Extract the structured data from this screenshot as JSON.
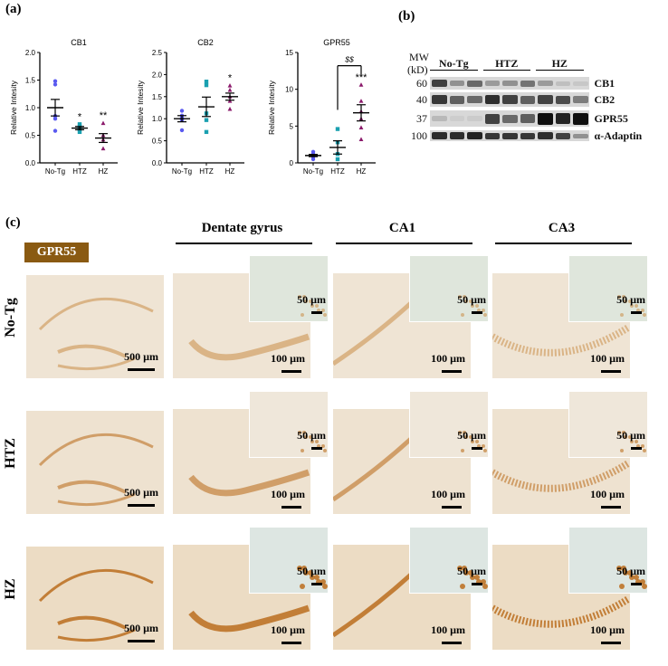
{
  "panels": {
    "a": {
      "label": "(a)"
    },
    "b": {
      "label": "(b)"
    },
    "c": {
      "label": "(c)"
    }
  },
  "chart_data": [
    {
      "type": "scatter",
      "title": "CB1",
      "xlabel": "",
      "ylabel": "Relative Intesity",
      "categories": [
        "No-Tg",
        "HTZ",
        "HZ"
      ],
      "ylim": [
        0,
        2.0
      ],
      "yticks": [
        "0.0",
        "0.5",
        "1.0",
        "1.5",
        "2.0"
      ],
      "series": [
        {
          "name": "No-Tg",
          "color": "#5a5af0",
          "marker": "circle",
          "values": [
            1.48,
            1.42,
            0.85,
            0.8,
            0.58
          ],
          "mean": 1.0,
          "sem": 0.15
        },
        {
          "name": "HTZ",
          "color": "#1aa0b0",
          "marker": "square",
          "values": [
            0.7,
            0.66,
            0.63,
            0.6,
            0.56
          ],
          "mean": 0.63,
          "sem": 0.03
        },
        {
          "name": "HZ",
          "color": "#8b1a6b",
          "marker": "triangle",
          "values": [
            0.72,
            0.5,
            0.42,
            0.26
          ],
          "mean": 0.45,
          "sem": 0.08
        }
      ],
      "annotations": [
        {
          "x": "HTZ",
          "text": "*"
        },
        {
          "x": "HZ",
          "text": "**"
        }
      ]
    },
    {
      "type": "scatter",
      "title": "CB2",
      "xlabel": "",
      "ylabel": "Relative Intesity",
      "categories": [
        "No-Tg",
        "HTZ",
        "HZ"
      ],
      "ylim": [
        0,
        2.5
      ],
      "yticks": [
        "0.0",
        "0.5",
        "1.0",
        "1.5",
        "2.0",
        "2.5"
      ],
      "series": [
        {
          "name": "No-Tg",
          "color": "#5a5af0",
          "marker": "circle",
          "values": [
            1.18,
            1.07,
            1.02,
            0.97,
            0.74
          ],
          "mean": 1.0,
          "sem": 0.07
        },
        {
          "name": "HTZ",
          "color": "#1aa0b0",
          "marker": "square",
          "values": [
            1.84,
            1.76,
            1.12,
            0.97,
            0.7
          ],
          "mean": 1.27,
          "sem": 0.22
        },
        {
          "name": "HZ",
          "color": "#8b1a6b",
          "marker": "triangle",
          "values": [
            1.75,
            1.65,
            1.5,
            1.4,
            1.22
          ],
          "mean": 1.5,
          "sem": 0.08
        }
      ],
      "annotations": [
        {
          "x": "HZ",
          "text": "*"
        }
      ]
    },
    {
      "type": "scatter",
      "title": "GPR55",
      "xlabel": "",
      "ylabel": "Relative Intesity",
      "categories": [
        "No-Tg",
        "HTZ",
        "HZ"
      ],
      "ylim": [
        0,
        15
      ],
      "yticks": [
        "0",
        "5",
        "10",
        "15"
      ],
      "series": [
        {
          "name": "No-Tg",
          "color": "#5a5af0",
          "marker": "circle",
          "values": [
            1.5,
            1.2,
            1.0,
            0.8,
            0.5
          ],
          "mean": 1.0,
          "sem": 0.15
        },
        {
          "name": "HTZ",
          "color": "#1aa0b0",
          "marker": "square",
          "values": [
            4.6,
            2.8,
            1.2,
            0.5
          ],
          "mean": 2.1,
          "sem": 0.9
        },
        {
          "name": "HZ",
          "color": "#8b1a6b",
          "marker": "triangle",
          "values": [
            10.6,
            8.4,
            7.0,
            6.0,
            4.8,
            3.2
          ],
          "mean": 6.8,
          "sem": 1.1
        }
      ],
      "annotations": [
        {
          "x": "HZ",
          "text": "***"
        },
        {
          "x": "HTZ-HZ",
          "text": "$$",
          "bracket": true
        }
      ]
    }
  ],
  "western_blot": {
    "mw_header_line1": "MW",
    "mw_header_line2": "(kD)",
    "groups": [
      "No-Tg",
      "HTZ",
      "HZ"
    ],
    "rows": [
      {
        "mw": "60",
        "protein": "CB1",
        "lanes": [
          0.75,
          0.35,
          0.55,
          0.3,
          0.35,
          0.5,
          0.3,
          0.12,
          0.08
        ]
      },
      {
        "mw": "40",
        "protein": "CB2",
        "lanes": [
          0.8,
          0.6,
          0.55,
          0.85,
          0.75,
          0.6,
          0.75,
          0.7,
          0.45
        ]
      },
      {
        "mw": "37",
        "protein": "GPR55",
        "lanes": [
          0.15,
          0.05,
          0.06,
          0.75,
          0.55,
          0.6,
          1.0,
          0.9,
          1.0
        ]
      },
      {
        "mw": "100",
        "protein": "α-Adaptin",
        "lanes": [
          0.85,
          0.85,
          0.9,
          0.8,
          0.8,
          0.8,
          0.85,
          0.75,
          0.35
        ]
      }
    ]
  },
  "histology": {
    "stain": "GPR55",
    "stain_color": "#8a5a12",
    "columns": [
      "Dentate gyrus",
      "CA1",
      "CA3"
    ],
    "rows": [
      {
        "label": "No-Tg",
        "overview_scale": "500 µm",
        "main_scale": "100 µm",
        "inset_scale": "50 µm"
      },
      {
        "label": "HTZ",
        "overview_scale": "500 µm",
        "main_scale": "100 µm",
        "inset_scale": "50 µm"
      },
      {
        "label": "HZ",
        "overview_scale": "500 µm",
        "main_scale": "100 µm",
        "inset_scale": "50 µm"
      }
    ]
  }
}
